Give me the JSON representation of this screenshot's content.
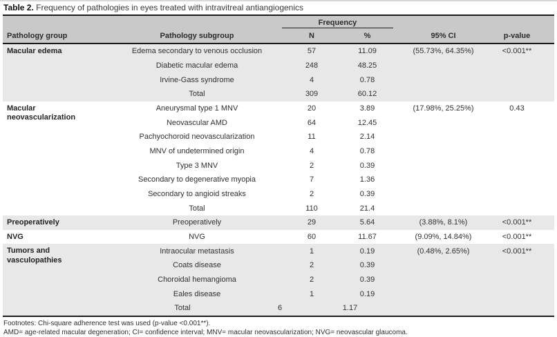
{
  "title": {
    "label": "Table 2.",
    "text": " Frequency of pathologies in eyes treated with intravitreal antiangiogenics"
  },
  "header": {
    "frequency": "Frequency",
    "col_group": "Pathology group",
    "col_subgroup": "Pathology subgroup",
    "col_n": "N",
    "col_pct": "%",
    "col_ci": "95% CI",
    "col_p": "p-value"
  },
  "colors": {
    "header_bg": "#c9c9c9",
    "shaded_row_bg": "#e8e8e8",
    "rule": "#1a1a1a",
    "text": "#303030"
  },
  "sections": [
    {
      "group": "Macular edema",
      "shaded": true,
      "rows": [
        {
          "subgroup": "Edema secondary to venous occlusion",
          "n": "57",
          "pct": "11.09",
          "ci": "(55.73%, 64.35%)",
          "p": "<0.001**"
        },
        {
          "subgroup": "Diabetic macular edema",
          "n": "248",
          "pct": "48.25",
          "ci": "",
          "p": ""
        },
        {
          "subgroup": "Irvine-Gass syndrome",
          "n": "4",
          "pct": "0.78",
          "ci": "",
          "p": ""
        },
        {
          "subgroup": "Total",
          "n": "309",
          "pct": "60.12",
          "ci": "",
          "p": ""
        }
      ]
    },
    {
      "group": "Macular neovascularization",
      "shaded": false,
      "rows": [
        {
          "subgroup": "Aneurysmal type 1 MNV",
          "n": "20",
          "pct": "3.89",
          "ci": "(17.98%, 25.25%)",
          "p": "0.43"
        },
        {
          "subgroup": "Neovascular AMD",
          "n": "64",
          "pct": "12.45",
          "ci": "",
          "p": ""
        },
        {
          "subgroup": "Pachyochoroid neovascularization",
          "n": "11",
          "pct": "2.14",
          "ci": "",
          "p": ""
        },
        {
          "subgroup": "MNV of undetermined origin",
          "n": "4",
          "pct": "0.78",
          "ci": "",
          "p": ""
        },
        {
          "subgroup": "Type 3 MNV",
          "n": "2",
          "pct": "0.39",
          "ci": "",
          "p": ""
        },
        {
          "subgroup": "Secondary to degenerative myopia",
          "n": "7",
          "pct": "1.36",
          "ci": "",
          "p": ""
        },
        {
          "subgroup": "Secondary to angioid streaks",
          "n": "2",
          "pct": "0.39",
          "ci": "",
          "p": ""
        },
        {
          "subgroup": "Total",
          "n": "110",
          "pct": "21.4",
          "ci": "",
          "p": ""
        }
      ]
    },
    {
      "group": "Preoperatively",
      "shaded": true,
      "rows": [
        {
          "subgroup": "Preoperatively",
          "n": "29",
          "pct": "5.64",
          "ci": "(3.88%, 8.1%)",
          "p": "<0.001**"
        }
      ]
    },
    {
      "group": "NVG",
      "shaded": false,
      "rows": [
        {
          "subgroup": "NVG",
          "n": "60",
          "pct": "11.67",
          "ci": "(9.09%, 14.84%)",
          "p": "<0.001**"
        }
      ]
    },
    {
      "group": "Tumors and vasculopathies",
      "shaded": true,
      "rows": [
        {
          "subgroup": "Intraocular metastasis",
          "n": "1",
          "pct": "0.19",
          "ci": "(0.48%, 2.65%)",
          "p": "<0.001**"
        },
        {
          "subgroup": "Coats disease",
          "n": "2",
          "pct": "0.39",
          "ci": "",
          "p": ""
        },
        {
          "subgroup": "Choroidal hemangioma",
          "n": "2",
          "pct": "0.39",
          "ci": "",
          "p": ""
        },
        {
          "subgroup": "Eales disease",
          "n": "1",
          "pct": "0.19",
          "ci": "",
          "p": ""
        },
        {
          "subgroup": "Total",
          "n": "6",
          "pct": "1.17",
          "ci": "",
          "p": "",
          "offset": true
        }
      ]
    }
  ],
  "footnotes": [
    "Footnotes: Chi-square adherence test was used (p-value <0.001**).",
    "AMD= age-related macular degeneration; CI= confidence interval; MNV= macular neovascularization; NVG= neovascular glaucoma."
  ]
}
